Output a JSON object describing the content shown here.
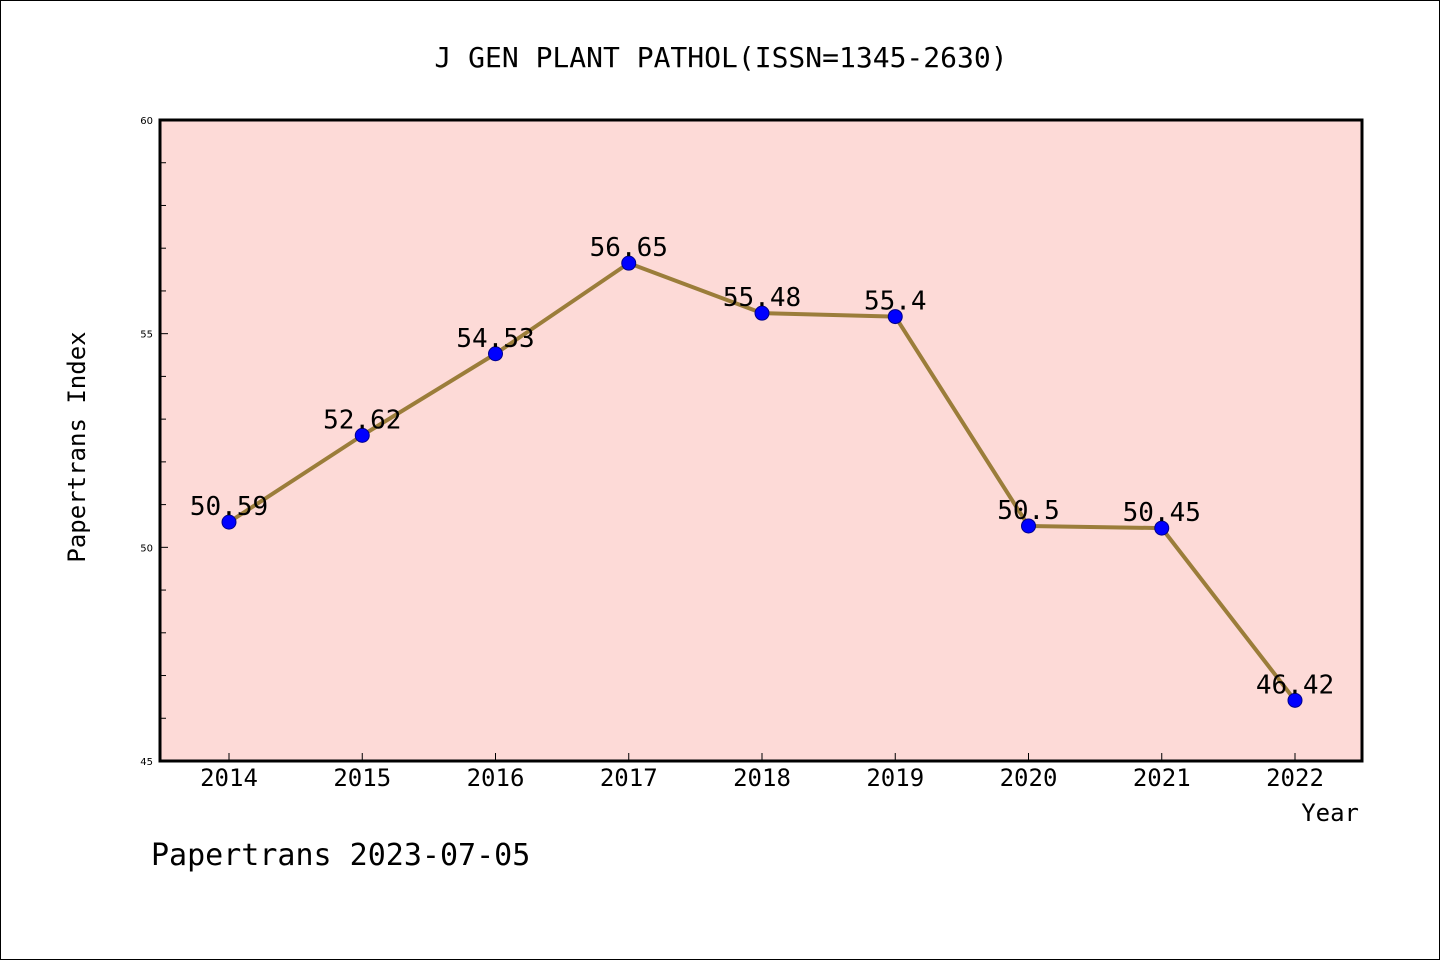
{
  "chart_data": {
    "type": "line",
    "title": "J GEN PLANT PATHOL(ISSN=1345-2630)",
    "xlabel": "Year",
    "ylabel": "Papertrans Index",
    "x": [
      "2014",
      "2015",
      "2016",
      "2017",
      "2018",
      "2019",
      "2020",
      "2021",
      "2022"
    ],
    "values": [
      50.59,
      52.62,
      54.53,
      56.65,
      55.48,
      55.4,
      50.5,
      50.45,
      46.42
    ],
    "point_labels": [
      "50.59",
      "52.62",
      "54.53",
      "56.65",
      "55.48",
      "55.4",
      "50.5",
      "50.45",
      "46.42"
    ],
    "ylim": [
      45,
      60
    ],
    "yticks": [
      "45",
      "50",
      "55",
      "60"
    ],
    "grid": false,
    "legend": "none",
    "footer": "Papertrans 2023-07-05",
    "colors": {
      "plot_background": "#fddad7",
      "line": "#9b7d3a",
      "marker": "#0000ff"
    }
  }
}
